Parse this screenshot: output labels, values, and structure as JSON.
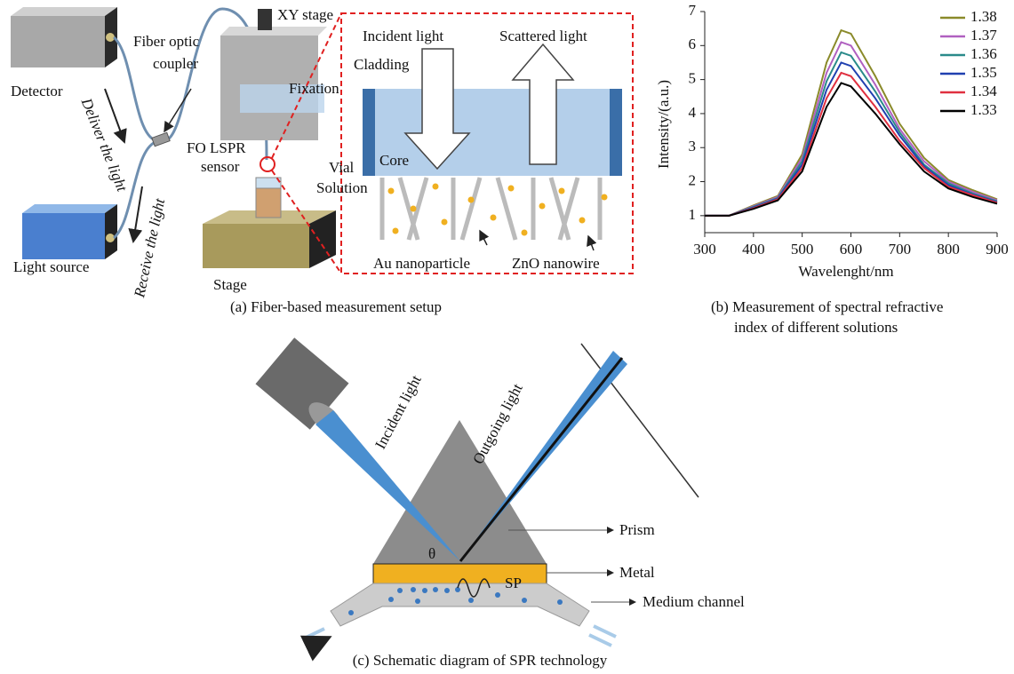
{
  "panel_a": {
    "detector": "Detector",
    "coupler": [
      "Fiber optic",
      "coupler"
    ],
    "deliver": "Deliver the light",
    "receive": "Receive the light",
    "light_source": "Light source",
    "xy_stage": "XY stage",
    "fixation": "Fixation",
    "sensor": [
      "FO LSPR",
      "sensor"
    ],
    "vial": "Vial",
    "solution": "Solution",
    "stage": "Stage",
    "incident": "Incident light",
    "scattered": "Scattered light",
    "cladding": "Cladding",
    "core": "Core",
    "au": "Au nanoparticle",
    "zno": "ZnO nanowire",
    "caption": "(a) Fiber-based measurement setup"
  },
  "chart_data": {
    "type": "line",
    "caption": [
      "(b) Measurement of spectral refractive",
      "index of different solutions"
    ],
    "x_label": "Wavelenght/nm",
    "y_label": "Intensity/(a.u.)",
    "x": [
      300,
      350,
      400,
      450,
      500,
      550,
      580,
      600,
      650,
      700,
      750,
      800,
      850,
      900
    ],
    "series": [
      {
        "name": "1.38",
        "color": "#8a8a2a",
        "values": [
          1,
          1,
          1.3,
          1.58,
          2.8,
          5.5,
          6.45,
          6.35,
          5.1,
          3.7,
          2.7,
          2.05,
          1.75,
          1.48
        ]
      },
      {
        "name": "1.37",
        "color": "#b060c0",
        "values": [
          1,
          1,
          1.28,
          1.55,
          2.7,
          5.2,
          6.1,
          6.0,
          4.85,
          3.55,
          2.6,
          2.0,
          1.7,
          1.45
        ]
      },
      {
        "name": "1.36",
        "color": "#2a8a8a",
        "values": [
          1,
          1,
          1.26,
          1.52,
          2.6,
          4.95,
          5.8,
          5.7,
          4.65,
          3.45,
          2.5,
          1.95,
          1.65,
          1.42
        ]
      },
      {
        "name": "1.35",
        "color": "#2040b0",
        "values": [
          1,
          1,
          1.24,
          1.5,
          2.5,
          4.7,
          5.5,
          5.4,
          4.45,
          3.35,
          2.45,
          1.9,
          1.62,
          1.4
        ]
      },
      {
        "name": "1.34",
        "color": "#e03040",
        "values": [
          1,
          1,
          1.22,
          1.48,
          2.4,
          4.45,
          5.2,
          5.1,
          4.2,
          3.2,
          2.4,
          1.85,
          1.6,
          1.38
        ]
      },
      {
        "name": "1.33",
        "color": "#000000",
        "values": [
          1,
          1,
          1.2,
          1.45,
          2.3,
          4.2,
          4.9,
          4.8,
          4.0,
          3.1,
          2.3,
          1.8,
          1.55,
          1.35
        ]
      }
    ],
    "xlim": [
      300,
      900
    ],
    "xticks": [
      300,
      400,
      500,
      600,
      700,
      800,
      900
    ],
    "ylim": [
      0.5,
      7
    ],
    "yticks": [
      1,
      2,
      3,
      4,
      5,
      6,
      7
    ],
    "legend": "upper right"
  },
  "panel_c": {
    "incident": "Incident light",
    "outgoing": "Outgoing light",
    "prism": "Prism",
    "metal": "Metal",
    "medium": "Medium channel",
    "sp": "SP",
    "theta": "θ",
    "caption": "(c) Schematic diagram of SPR technology"
  }
}
